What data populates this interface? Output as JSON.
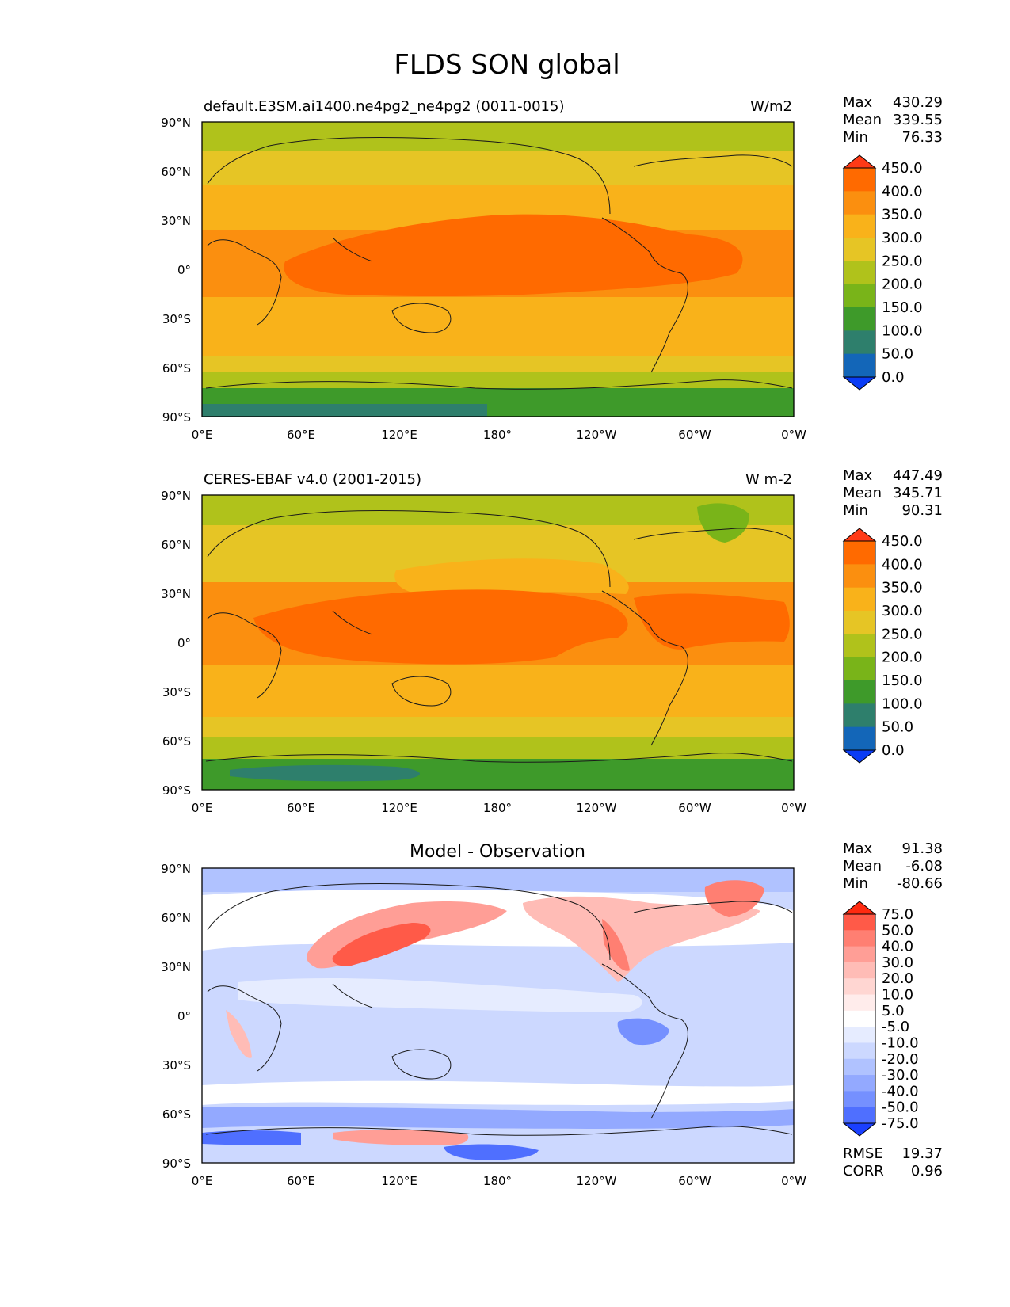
{
  "title": "FLDS SON global",
  "axes": {
    "lat_ticks": [
      "90°N",
      "60°N",
      "30°N",
      "0°",
      "30°S",
      "60°S",
      "90°S"
    ],
    "lon_ticks": [
      "0°E",
      "60°E",
      "120°E",
      "180°",
      "120°W",
      "60°W",
      "0°W"
    ]
  },
  "panels": [
    {
      "id": "model",
      "left_title": "default.E3SM.ai1400.ne4pg2_ne4pg2 (0011-0015)",
      "center_title": "",
      "right_title": "W/m2",
      "stats": [
        {
          "label": "Max",
          "value": "430.29"
        },
        {
          "label": "Mean",
          "value": "339.55"
        },
        {
          "label": "Min",
          "value": "76.33"
        }
      ],
      "colorbar": {
        "labels": [
          "450.0",
          "400.0",
          "350.0",
          "300.0",
          "250.0",
          "200.0",
          "150.0",
          "100.0",
          "50.0",
          "0.0"
        ],
        "colors": [
          "#ff3a16",
          "#ff6a00",
          "#fb8f0f",
          "#f9b21a",
          "#e6c525",
          "#b0c21b",
          "#79b419",
          "#3e9a2a",
          "#2e7f6c",
          "#1366b8",
          "#0a3cf5"
        ]
      },
      "footer_stats": []
    },
    {
      "id": "obs",
      "left_title": "CERES-EBAF v4.0 (2001-2015)",
      "center_title": "",
      "right_title": "W m-2",
      "stats": [
        {
          "label": "Max",
          "value": "447.49"
        },
        {
          "label": "Mean",
          "value": "345.71"
        },
        {
          "label": "Min",
          "value": "90.31"
        }
      ],
      "colorbar": {
        "labels": [
          "450.0",
          "400.0",
          "350.0",
          "300.0",
          "250.0",
          "200.0",
          "150.0",
          "100.0",
          "50.0",
          "0.0"
        ],
        "colors": [
          "#ff3a16",
          "#ff6a00",
          "#fb8f0f",
          "#f9b21a",
          "#e6c525",
          "#b0c21b",
          "#79b419",
          "#3e9a2a",
          "#2e7f6c",
          "#1366b8",
          "#0a3cf5"
        ]
      },
      "footer_stats": []
    },
    {
      "id": "diff",
      "left_title": "",
      "center_title": "Model - Observation",
      "right_title": "",
      "stats": [
        {
          "label": "Max",
          "value": "91.38"
        },
        {
          "label": "Mean",
          "value": "-6.08"
        },
        {
          "label": "Min",
          "value": "-80.66"
        }
      ],
      "colorbar": {
        "labels": [
          "75.0",
          "50.0",
          "40.0",
          "30.0",
          "20.0",
          "10.0",
          "5.0",
          "-5.0",
          "-10.0",
          "-20.0",
          "-30.0",
          "-40.0",
          "-50.0",
          "-75.0"
        ],
        "colors": [
          "#ff2a10",
          "#ff5a48",
          "#ff7f72",
          "#ff9e96",
          "#ffbcb6",
          "#ffd6d2",
          "#ffeceb",
          "#ffffff",
          "#e6ecff",
          "#ccd8ff",
          "#b0c2ff",
          "#93a9ff",
          "#7590ff",
          "#4f6fff",
          "#1a3fff"
        ]
      },
      "footer_stats": [
        {
          "label": "RMSE",
          "value": "19.37"
        },
        {
          "label": "CORR",
          "value": "0.96"
        }
      ]
    }
  ]
}
